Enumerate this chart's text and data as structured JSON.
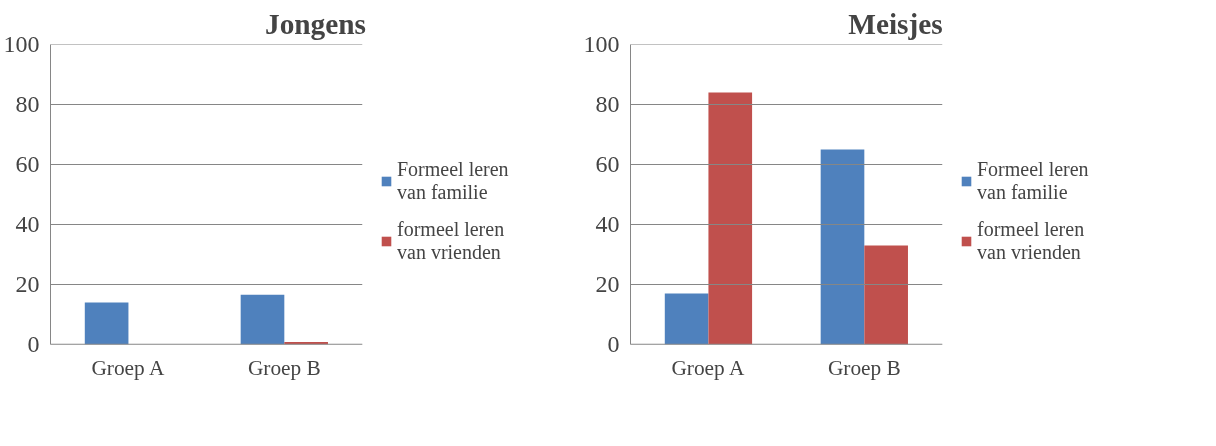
{
  "chart_data": [
    {
      "type": "bar",
      "title": "Jongens",
      "categories": [
        "Groep A",
        "Groep B"
      ],
      "series": [
        {
          "name": "Formeel leren van familie",
          "color": "#4f81bd",
          "values": [
            14.0,
            16.6
          ]
        },
        {
          "name": "formeel leren van vrienden",
          "color": "#c0504d",
          "values": [
            0,
            0.8
          ]
        }
      ],
      "ylim": [
        0,
        100
      ],
      "yticks": [
        0,
        20,
        40,
        60,
        80,
        100
      ],
      "grid": "y",
      "legend": "right"
    },
    {
      "type": "bar",
      "title": "Meisjes",
      "categories": [
        "Groep A",
        "Groep B"
      ],
      "series": [
        {
          "name": "Formeel leren van familie",
          "color": "#4f81bd",
          "values": [
            17,
            65
          ]
        },
        {
          "name": "formeel leren van vrienden",
          "color": "#c0504d",
          "values": [
            84,
            33
          ]
        }
      ],
      "ylim": [
        0,
        100
      ],
      "yticks": [
        0,
        20,
        40,
        60,
        80,
        100
      ],
      "grid": "y",
      "legend": "right"
    }
  ]
}
